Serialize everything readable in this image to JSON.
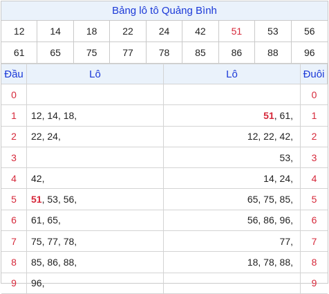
{
  "title": "Bảng lô tô Quảng Bình",
  "numbers_row1": [
    "12",
    "14",
    "18",
    "22",
    "24",
    "42",
    "51",
    "53",
    "56"
  ],
  "numbers_row2": [
    "61",
    "65",
    "75",
    "77",
    "78",
    "85",
    "86",
    "88",
    "96"
  ],
  "highlight_number": "51",
  "headers": {
    "dau": "Đầu",
    "lo_left": "Lô",
    "lo_right": "Lô",
    "duoi": "Đuôi"
  },
  "rows": [
    {
      "dau": "0",
      "lo_left": "",
      "lo_right": "",
      "duoi": "0"
    },
    {
      "dau": "1",
      "lo_left": "12, 14, 18,",
      "lo_right": "51, 61,",
      "duoi": "1"
    },
    {
      "dau": "2",
      "lo_left": "22, 24,",
      "lo_right": "12, 22, 42,",
      "duoi": "2"
    },
    {
      "dau": "3",
      "lo_left": "",
      "lo_right": "53,",
      "duoi": "3"
    },
    {
      "dau": "4",
      "lo_left": "42,",
      "lo_right": "14, 24,",
      "duoi": "4"
    },
    {
      "dau": "5",
      "lo_left": "51, 53, 56,",
      "lo_right": "65, 75, 85,",
      "duoi": "5"
    },
    {
      "dau": "6",
      "lo_left": "61, 65,",
      "lo_right": "56, 86, 96,",
      "duoi": "6"
    },
    {
      "dau": "7",
      "lo_left": "75, 77, 78,",
      "lo_right": "77,",
      "duoi": "7"
    },
    {
      "dau": "8",
      "lo_left": "85, 86, 88,",
      "lo_right": "18, 78, 88,",
      "duoi": "8"
    },
    {
      "dau": "9",
      "lo_left": "96,",
      "lo_right": "",
      "duoi": "9"
    }
  ],
  "colors": {
    "title": "#1b39d8",
    "highlight": "#d6283a",
    "header_bg": "#eaf2fb"
  }
}
